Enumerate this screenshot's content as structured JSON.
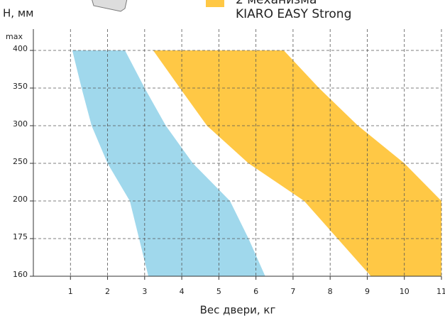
{
  "chart_data": {
    "type": "range-area",
    "y_title": "Н, мм",
    "x_title": "Вес двери, кг",
    "y_top_label": "max",
    "legend_lines": [
      "2 механизма",
      "KIARO EASY Strong"
    ],
    "xlim": [
      0,
      11
    ],
    "xticks": [
      1,
      2,
      3,
      4,
      5,
      6,
      7,
      8,
      9,
      10,
      11
    ],
    "yticks": [
      160,
      175,
      200,
      250,
      300,
      350,
      400
    ],
    "y": [
      160,
      175,
      200,
      250,
      300,
      350,
      400
    ],
    "grid": true,
    "series": [
      {
        "color": "#ffc845",
        "left": [
          9.1,
          8.2,
          7.3,
          5.8,
          4.68,
          3.95,
          3.23
        ],
        "right": [
          11,
          11,
          11,
          10.0,
          8.75,
          7.7,
          6.75
        ]
      },
      {
        "color": "#a0d8ec",
        "left": [
          3.1,
          2.85,
          2.6,
          2.0,
          1.57,
          1.3,
          1.05
        ],
        "right": [
          6.25,
          5.8,
          5.3,
          4.3,
          3.57,
          3.0,
          2.47
        ]
      }
    ]
  }
}
